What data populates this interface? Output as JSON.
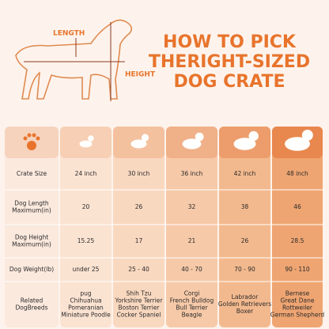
{
  "header": {
    "length_label": "LENGTH",
    "height_label": "HEIGHT",
    "title": [
      "HOW TO PICK",
      "THERIGHT-SIZED",
      "DOG CRATE"
    ]
  },
  "table": {
    "row_headers": [
      [
        "Crate Size"
      ],
      [
        "Dog Length",
        "Maximum(in)"
      ],
      [
        "Dog Height",
        "Maximum(in)"
      ],
      [
        "Dog Weight(lb)"
      ],
      [
        "Related",
        "DogBreeds"
      ]
    ],
    "rows": [
      [
        [
          "24 inch"
        ],
        [
          "30 inch"
        ],
        [
          "36 inch"
        ],
        [
          "42 inch"
        ],
        [
          "48 inch"
        ]
      ],
      [
        [
          "20"
        ],
        [
          "26"
        ],
        [
          "32"
        ],
        [
          "38"
        ],
        [
          "46"
        ]
      ],
      [
        [
          "15.25"
        ],
        [
          "17"
        ],
        [
          "21"
        ],
        [
          "26"
        ],
        [
          "28.5"
        ]
      ],
      [
        [
          "under 25"
        ],
        [
          "25 - 40"
        ],
        [
          "40 - 70"
        ],
        [
          "70 - 90"
        ],
        [
          "90 - 110"
        ]
      ],
      [
        [
          "pug",
          "Chihuahua",
          "Pomeranian",
          "Miniature Poodle"
        ],
        [
          "Shih Tzu",
          "Yorkshire Terrier",
          "Boston Terrier",
          "Cocker Spaniel"
        ],
        [
          "Corgi",
          "French Bulldog",
          "Bull Terrier",
          "Beagle"
        ],
        [
          "Labrador",
          "Golden Retrievers",
          "Boxer"
        ],
        [
          "Bernese",
          "Great Dane",
          "Rottweiler",
          "German Shepherd"
        ]
      ]
    ]
  }
}
